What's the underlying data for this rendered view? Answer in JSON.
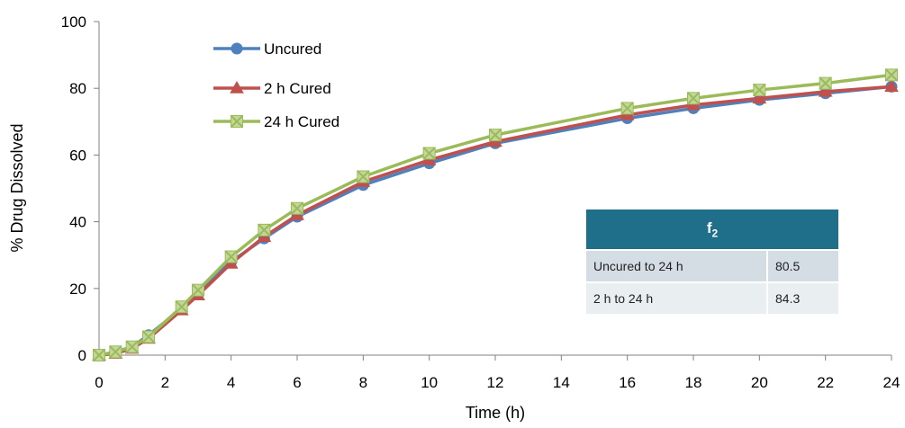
{
  "chart_data": {
    "type": "line",
    "xlabel": "Time (h)",
    "ylabel": "% Drug  Dissolved",
    "xlim": [
      0,
      24
    ],
    "ylim": [
      0,
      100
    ],
    "xticks": [
      "0",
      "2",
      "4",
      "6",
      "8",
      "10",
      "12",
      "14",
      "16",
      "18",
      "20",
      "22",
      "24"
    ],
    "yticks": [
      "0",
      "20",
      "40",
      "60",
      "80",
      "100"
    ],
    "grid": false,
    "legend_position": "top-left",
    "x": [
      0,
      0.5,
      1,
      1.5,
      2.5,
      3,
      4,
      5,
      6,
      8,
      10,
      12,
      16,
      18,
      20,
      22,
      24
    ],
    "series": [
      {
        "name": "Uncured",
        "color": "#4f81bd",
        "marker": "circle",
        "values": [
          0,
          1,
          2.5,
          6,
          14,
          19,
          28,
          35,
          41.5,
          51,
          57.5,
          63.5,
          71,
          74,
          76.5,
          78.5,
          80.5
        ]
      },
      {
        "name": "2 h Cured",
        "color": "#c0504d",
        "marker": "triangle",
        "values": [
          0,
          0.5,
          2,
          5,
          13.5,
          18,
          27.5,
          35.5,
          42,
          52,
          58.5,
          64,
          72,
          75,
          77,
          79,
          80.5
        ]
      },
      {
        "name": "24 h Cured",
        "color": "#9bbb59",
        "marker": "x-square",
        "values": [
          0,
          1,
          2.5,
          5.5,
          14.5,
          19.5,
          29.5,
          37.5,
          44,
          53.5,
          60.5,
          66,
          74,
          77,
          79.5,
          81.5,
          84
        ]
      }
    ]
  },
  "f2_table": {
    "header": "f",
    "header_sub": "2",
    "rows": [
      {
        "label": "Uncured  to 24  h",
        "value": "80.5"
      },
      {
        "label": "2 h to 24 h",
        "value": "84.3"
      }
    ]
  }
}
